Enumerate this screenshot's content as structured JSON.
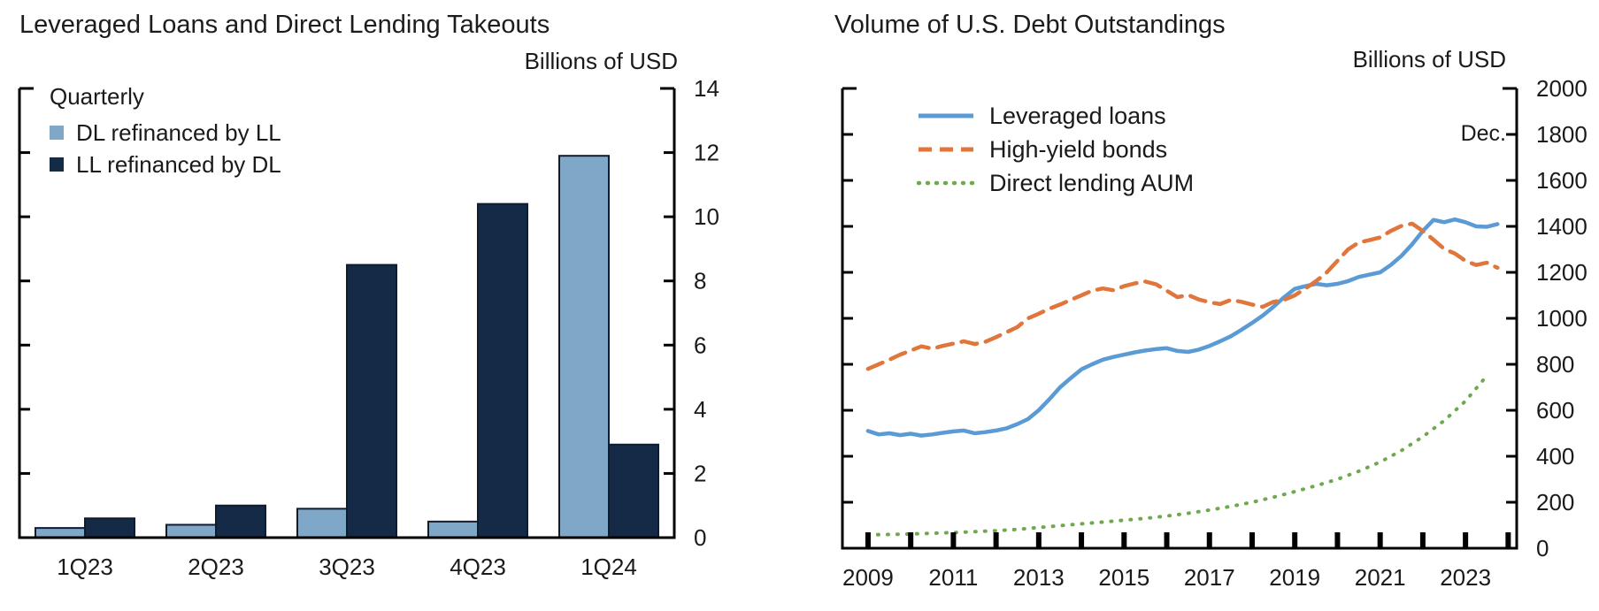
{
  "chart_data": [
    {
      "type": "bar",
      "title": "Leveraged Loans and Direct Lending Takeouts",
      "units": "Billions of USD",
      "legend_title": "Quarterly",
      "legend_position": "top-left",
      "categories": [
        "1Q23",
        "2Q23",
        "3Q23",
        "4Q23",
        "1Q24"
      ],
      "series": [
        {
          "name": "DL refinanced by LL",
          "color": "#7FA7C7",
          "values": [
            0.3,
            0.4,
            0.9,
            0.5,
            11.9
          ]
        },
        {
          "name": "LL refinanced by DL",
          "color": "#152A47",
          "values": [
            0.6,
            1.0,
            8.5,
            10.4,
            2.9
          ]
        }
      ],
      "xlabel": "",
      "ylabel": "",
      "ylim": [
        0,
        14
      ],
      "ytick_step": 2,
      "grid": false,
      "bar_outline": "#0E1C30",
      "axis_color": "#000000"
    },
    {
      "type": "line",
      "title": "Volume of U.S. Debt Outstandings",
      "units": "Billions of USD",
      "annotation": "Dec.",
      "legend_position": "top-left",
      "xlim": [
        2008.4,
        2024.2
      ],
      "ylim": [
        0,
        2000
      ],
      "ytick_step": 200,
      "xticks": [
        2009,
        2011,
        2013,
        2015,
        2017,
        2019,
        2021,
        2023
      ],
      "xtick_minor_step": 1,
      "grid": false,
      "axis_color": "#000000",
      "series": [
        {
          "name": "Leveraged loans",
          "color": "#5B9BD5",
          "style": "solid",
          "x_start": 2009,
          "x_step": 0.25,
          "values": [
            510,
            495,
            500,
            492,
            498,
            490,
            495,
            502,
            508,
            512,
            500,
            505,
            512,
            522,
            540,
            562,
            600,
            648,
            700,
            740,
            778,
            800,
            820,
            832,
            842,
            852,
            860,
            866,
            870,
            858,
            854,
            864,
            880,
            900,
            922,
            950,
            980,
            1012,
            1050,
            1092,
            1128,
            1140,
            1150,
            1144,
            1150,
            1162,
            1180,
            1190,
            1200,
            1232,
            1272,
            1322,
            1380,
            1428,
            1418,
            1430,
            1418,
            1400,
            1398,
            1410
          ]
        },
        {
          "name": "High-yield bonds",
          "color": "#E0763B",
          "style": "dashed",
          "x_start": 2009,
          "x_step": 0.25,
          "values": [
            780,
            800,
            820,
            842,
            860,
            878,
            868,
            880,
            890,
            900,
            888,
            898,
            918,
            940,
            962,
            1000,
            1020,
            1042,
            1060,
            1080,
            1100,
            1120,
            1130,
            1122,
            1140,
            1152,
            1160,
            1148,
            1120,
            1092,
            1102,
            1082,
            1070,
            1062,
            1080,
            1072,
            1060,
            1050,
            1072,
            1080,
            1100,
            1130,
            1162,
            1200,
            1250,
            1300,
            1330,
            1340,
            1352,
            1380,
            1402,
            1412,
            1380,
            1342,
            1302,
            1282,
            1250,
            1232,
            1242,
            1220
          ]
        },
        {
          "name": "Direct lending AUM",
          "color": "#6FA84F",
          "style": "dotted",
          "x_start": 2009,
          "x_step": 0.5,
          "values": [
            58,
            60,
            62,
            65,
            68,
            72,
            76,
            82,
            90,
            98,
            106,
            114,
            122,
            130,
            140,
            152,
            166,
            182,
            200,
            222,
            246,
            272,
            300,
            335,
            375,
            425,
            485,
            555,
            640,
            750
          ]
        }
      ]
    }
  ]
}
